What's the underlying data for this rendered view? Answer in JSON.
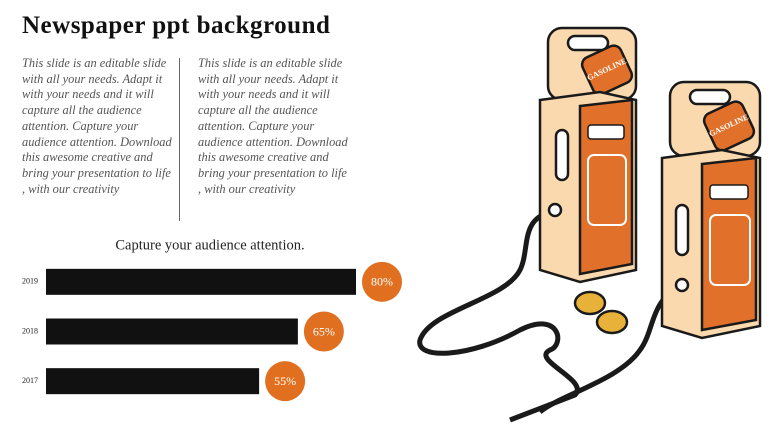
{
  "header": {
    "title": "Newspaper ppt background"
  },
  "columns": [
    "This slide is an editable slide with all your needs. Adapt it with your needs and it will capture all the audience attention. Capture your audience attention. Download this awesome creative and bring your presentation to life , with our creativity",
    "This slide is an editable slide with all your needs. Adapt it with your needs and it will capture all the audience attention. Capture your audience attention. Download this awesome creative and bring your presentation to life , with our creativity"
  ],
  "chart_data": {
    "type": "bar",
    "orientation": "horizontal",
    "title": "Capture your audience attention.",
    "categories": [
      "2019",
      "2018",
      "2017"
    ],
    "values": [
      80,
      65,
      55
    ],
    "value_labels": [
      "80%",
      "65%",
      "55%"
    ],
    "color": "#111111",
    "label_color": "#e07020",
    "xlim": [
      0,
      100
    ]
  },
  "illustration": {
    "labels": [
      "GASOLINE",
      "GASOLINE"
    ]
  }
}
